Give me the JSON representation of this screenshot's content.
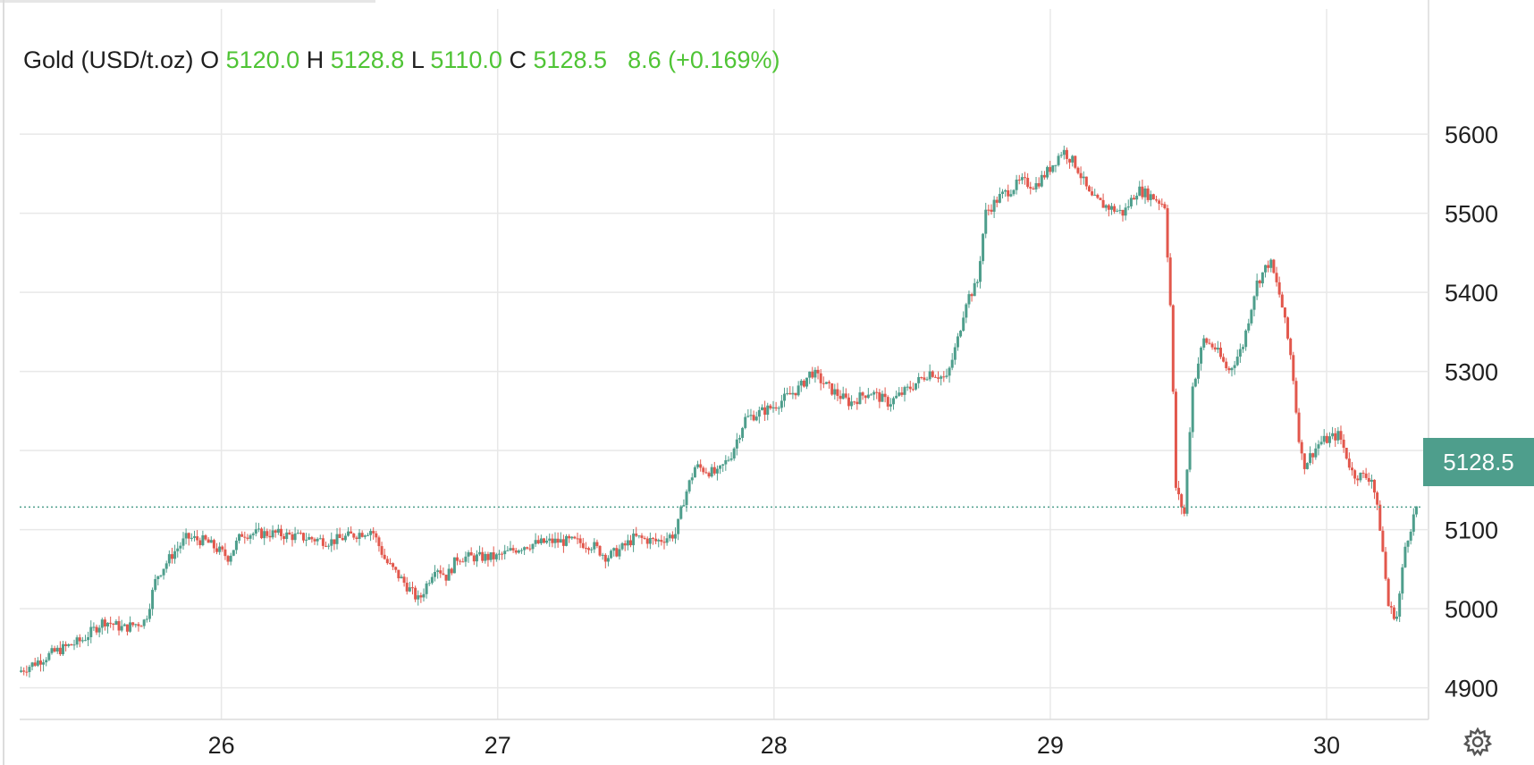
{
  "legend": {
    "symbol": "Gold (USD/t.oz)",
    "open_label": "O",
    "open": "5120.0",
    "high_label": "H",
    "high": "5128.8",
    "low_label": "L",
    "low": "5110.0",
    "close_label": "C",
    "close": "5128.5",
    "change": "8.6",
    "change_pct": "(+0.169%)"
  },
  "last_price_tag": "5128.5",
  "colors": {
    "up": "#4e9e8c",
    "down": "#e2574c",
    "legend_value": "#4fc435",
    "grid": "#e8e8e8",
    "text": "#1f1f1f"
  },
  "chart_data": {
    "type": "candlestick",
    "series_name": "Gold (USD/t.oz)",
    "x_ticks": [
      {
        "label": "26",
        "day": 26
      },
      {
        "label": "27",
        "day": 27
      },
      {
        "label": "28",
        "day": 28
      },
      {
        "label": "29",
        "day": 29
      },
      {
        "label": "30",
        "day": 30
      }
    ],
    "y_ticks": [
      4900,
      5000,
      5100,
      5200,
      5300,
      5400,
      5500,
      5600
    ],
    "xlim": [
      25.27,
      30.33
    ],
    "ylim": [
      4860,
      5660
    ],
    "last_price": 5128.5,
    "path": [
      [
        25.27,
        4920
      ],
      [
        25.4,
        4945
      ],
      [
        25.5,
        4960
      ],
      [
        25.58,
        4985
      ],
      [
        25.65,
        4975
      ],
      [
        25.73,
        4985
      ],
      [
        25.77,
        5040
      ],
      [
        25.83,
        5070
      ],
      [
        25.88,
        5090
      ],
      [
        25.95,
        5085
      ],
      [
        26.03,
        5065
      ],
      [
        26.08,
        5095
      ],
      [
        26.2,
        5095
      ],
      [
        26.3,
        5090
      ],
      [
        26.4,
        5085
      ],
      [
        26.5,
        5095
      ],
      [
        26.55,
        5100
      ],
      [
        26.6,
        5060
      ],
      [
        26.65,
        5040
      ],
      [
        26.72,
        5010
      ],
      [
        26.78,
        5055
      ],
      [
        26.82,
        5040
      ],
      [
        26.86,
        5065
      ],
      [
        27.0,
        5065
      ],
      [
        27.1,
        5080
      ],
      [
        27.2,
        5085
      ],
      [
        27.28,
        5085
      ],
      [
        27.35,
        5080
      ],
      [
        27.4,
        5065
      ],
      [
        27.45,
        5075
      ],
      [
        27.5,
        5090
      ],
      [
        27.58,
        5085
      ],
      [
        27.65,
        5095
      ],
      [
        27.68,
        5140
      ],
      [
        27.72,
        5180
      ],
      [
        27.8,
        5170
      ],
      [
        27.85,
        5195
      ],
      [
        27.9,
        5240
      ],
      [
        28.0,
        5255
      ],
      [
        28.1,
        5280
      ],
      [
        28.14,
        5300
      ],
      [
        28.2,
        5280
      ],
      [
        28.28,
        5260
      ],
      [
        28.35,
        5275
      ],
      [
        28.42,
        5260
      ],
      [
        28.5,
        5280
      ],
      [
        28.57,
        5300
      ],
      [
        28.63,
        5290
      ],
      [
        28.67,
        5340
      ],
      [
        28.7,
        5390
      ],
      [
        28.74,
        5410
      ],
      [
        28.77,
        5500
      ],
      [
        28.82,
        5520
      ],
      [
        28.9,
        5540
      ],
      [
        28.95,
        5535
      ],
      [
        29.0,
        5555
      ],
      [
        29.05,
        5580
      ],
      [
        29.1,
        5560
      ],
      [
        29.15,
        5520
      ],
      [
        29.2,
        5510
      ],
      [
        29.27,
        5500
      ],
      [
        29.32,
        5530
      ],
      [
        29.38,
        5520
      ],
      [
        29.42,
        5510
      ],
      [
        29.44,
        5380
      ],
      [
        29.46,
        5150
      ],
      [
        29.49,
        5120
      ],
      [
        29.52,
        5280
      ],
      [
        29.56,
        5340
      ],
      [
        29.6,
        5330
      ],
      [
        29.65,
        5300
      ],
      [
        29.7,
        5330
      ],
      [
        29.75,
        5410
      ],
      [
        29.8,
        5440
      ],
      [
        29.84,
        5390
      ],
      [
        29.88,
        5310
      ],
      [
        29.9,
        5230
      ],
      [
        29.92,
        5180
      ],
      [
        29.98,
        5210
      ],
      [
        30.05,
        5220
      ],
      [
        30.1,
        5170
      ],
      [
        30.17,
        5165
      ],
      [
        30.2,
        5100
      ],
      [
        30.23,
        5000
      ],
      [
        30.26,
        4990
      ],
      [
        30.29,
        5080
      ],
      [
        30.33,
        5128.5
      ]
    ]
  }
}
